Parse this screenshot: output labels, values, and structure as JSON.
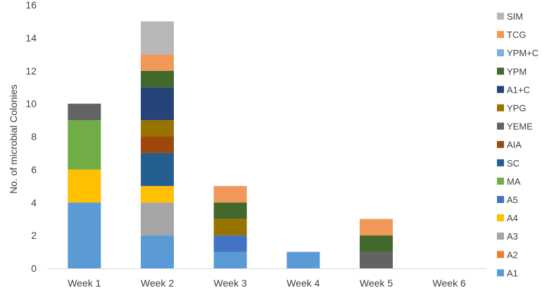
{
  "chart_data": {
    "type": "bar",
    "stacked": true,
    "title": "",
    "xlabel": "",
    "ylabel": "No. of microbial Colonies",
    "ylim": [
      0,
      16
    ],
    "yticks": [
      0,
      2,
      4,
      6,
      8,
      10,
      12,
      14,
      16
    ],
    "grid": false,
    "legend_position": "right",
    "categories": [
      "Week 1",
      "Week 2",
      "Week 3",
      "Week 4",
      "Week 5",
      "Week 6"
    ],
    "series": [
      {
        "name": "A1",
        "color": "#5b9bd5",
        "values": [
          4,
          2,
          1,
          1,
          0,
          0
        ]
      },
      {
        "name": "A2",
        "color": "#ed7d31",
        "values": [
          0,
          0,
          0,
          0,
          0,
          0
        ]
      },
      {
        "name": "A3",
        "color": "#a5a5a5",
        "values": [
          0,
          2,
          0,
          0,
          0,
          0
        ]
      },
      {
        "name": "A4",
        "color": "#ffc000",
        "values": [
          2,
          1,
          0,
          0,
          0,
          0
        ]
      },
      {
        "name": "A5",
        "color": "#4472c4",
        "values": [
          0,
          0,
          1,
          0,
          0,
          0
        ]
      },
      {
        "name": "MA",
        "color": "#70ad47",
        "values": [
          3,
          0,
          0,
          0,
          0,
          0
        ]
      },
      {
        "name": "SC",
        "color": "#255e91",
        "values": [
          0,
          2,
          0,
          0,
          0,
          0
        ]
      },
      {
        "name": "AIA",
        "color": "#9e480e",
        "values": [
          0,
          1,
          0,
          0,
          0,
          0
        ]
      },
      {
        "name": "YEME",
        "color": "#636363",
        "values": [
          1,
          0,
          0,
          0,
          1,
          0
        ]
      },
      {
        "name": "YPG",
        "color": "#997300",
        "values": [
          0,
          1,
          1,
          0,
          0,
          0
        ]
      },
      {
        "name": "A1+C",
        "color": "#264478",
        "values": [
          0,
          2,
          0,
          0,
          0,
          0
        ]
      },
      {
        "name": "YPM",
        "color": "#43682b",
        "values": [
          0,
          1,
          1,
          0,
          1,
          0
        ]
      },
      {
        "name": "YPM+C",
        "color": "#7cafdd",
        "values": [
          0,
          0,
          0,
          0,
          0,
          0
        ]
      },
      {
        "name": "TCG",
        "color": "#f1975a",
        "values": [
          0,
          1,
          1,
          0,
          1,
          0
        ]
      },
      {
        "name": "SIM",
        "color": "#b7b7b7",
        "values": [
          0,
          2,
          0,
          0,
          0,
          0
        ]
      }
    ]
  }
}
